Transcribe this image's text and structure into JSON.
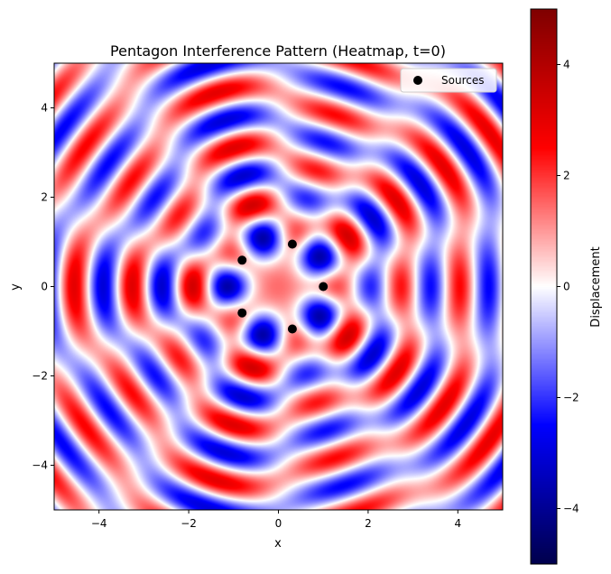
{
  "chart_data": {
    "type": "heatmap",
    "title": "Pentagon Interference Pattern (Heatmap, t=0)",
    "xlabel": "x",
    "ylabel": "y",
    "xlim": [
      -5,
      5
    ],
    "ylim": [
      -5,
      5
    ],
    "x_ticks": [
      -4,
      -2,
      0,
      2,
      4
    ],
    "y_ticks": [
      -4,
      -2,
      0,
      2,
      4
    ],
    "colormap": "seismic",
    "colorbar": {
      "label": "Displacement",
      "range": [
        -5,
        5
      ],
      "ticks": [
        -4,
        -2,
        0,
        2,
        4
      ]
    },
    "sources": {
      "name": "Sources",
      "color": "#000000",
      "points": [
        {
          "x": 1.0,
          "y": 0.0
        },
        {
          "x": 0.31,
          "y": 0.95
        },
        {
          "x": -0.81,
          "y": 0.59
        },
        {
          "x": -0.81,
          "y": -0.59
        },
        {
          "x": 0.31,
          "y": -0.95
        }
      ]
    },
    "wave_number": 5.0,
    "grid": false,
    "legend_position": "top-right"
  }
}
